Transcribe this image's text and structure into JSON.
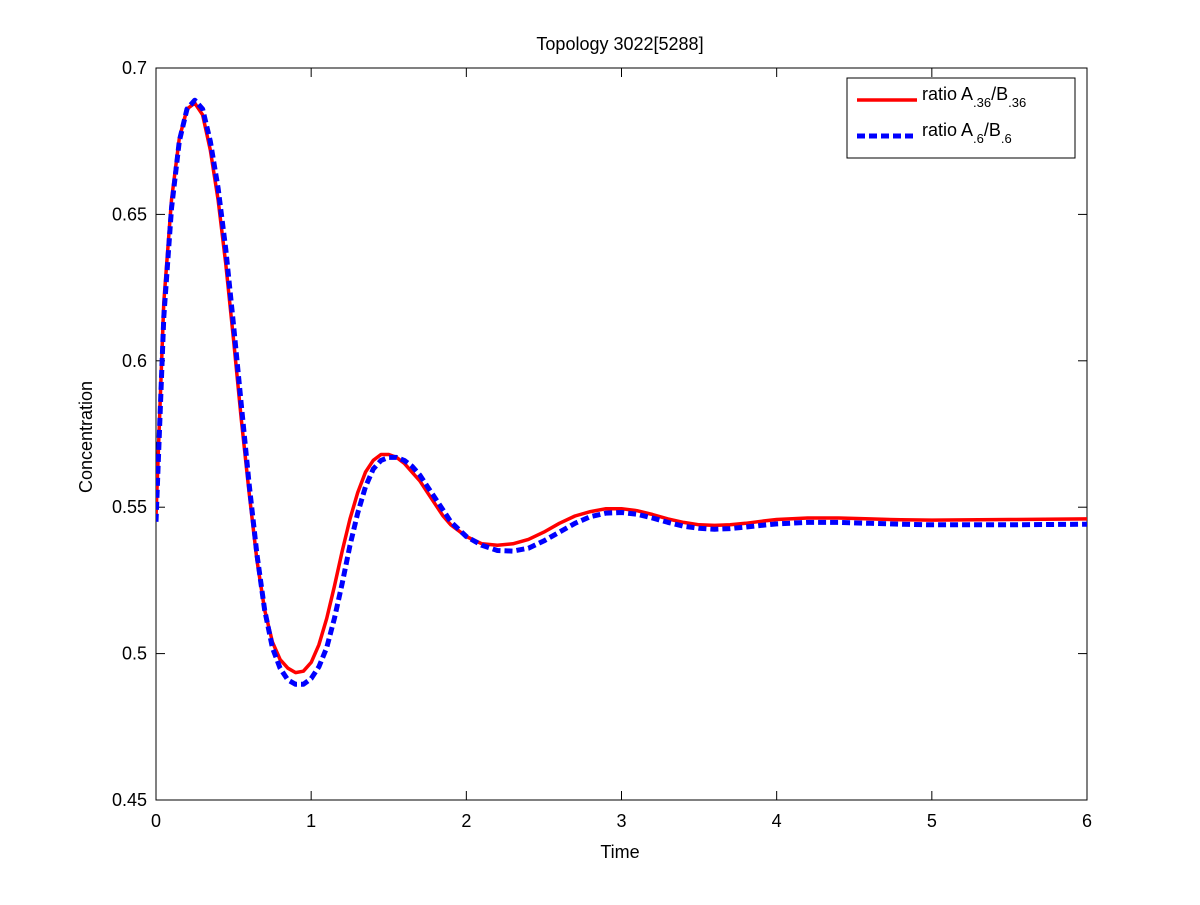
{
  "chart_data": {
    "type": "line",
    "title": "Topology 3022[5288]",
    "xlabel": "Time",
    "ylabel": "Concentration",
    "xlim": [
      0,
      6
    ],
    "ylim": [
      0.45,
      0.7
    ],
    "x_ticks": [
      "0",
      "1",
      "2",
      "3",
      "4",
      "5",
      "6"
    ],
    "y_ticks": [
      "0.45",
      "0.5",
      "0.55",
      "0.6",
      "0.65",
      "0.7"
    ],
    "grid": false,
    "legend_position": "top-right",
    "series": [
      {
        "name": {
          "base": "ratio A",
          "sub1": ".36",
          "mid": "/B",
          "sub2": ".36"
        },
        "color": "#ff0000",
        "style": "solid",
        "points": [
          [
            0,
            0.547
          ],
          [
            0.05,
            0.62
          ],
          [
            0.1,
            0.655
          ],
          [
            0.15,
            0.676
          ],
          [
            0.2,
            0.686
          ],
          [
            0.25,
            0.688
          ],
          [
            0.3,
            0.684
          ],
          [
            0.35,
            0.672
          ],
          [
            0.4,
            0.655
          ],
          [
            0.45,
            0.633
          ],
          [
            0.5,
            0.607
          ],
          [
            0.55,
            0.58
          ],
          [
            0.6,
            0.555
          ],
          [
            0.65,
            0.532
          ],
          [
            0.7,
            0.515
          ],
          [
            0.75,
            0.504
          ],
          [
            0.8,
            0.498
          ],
          [
            0.85,
            0.495
          ],
          [
            0.9,
            0.4935
          ],
          [
            0.95,
            0.494
          ],
          [
            1.0,
            0.497
          ],
          [
            1.05,
            0.503
          ],
          [
            1.1,
            0.512
          ],
          [
            1.15,
            0.523
          ],
          [
            1.2,
            0.535
          ],
          [
            1.25,
            0.546
          ],
          [
            1.3,
            0.555
          ],
          [
            1.35,
            0.562
          ],
          [
            1.4,
            0.566
          ],
          [
            1.45,
            0.568
          ],
          [
            1.5,
            0.568
          ],
          [
            1.55,
            0.567
          ],
          [
            1.6,
            0.565
          ],
          [
            1.65,
            0.562
          ],
          [
            1.7,
            0.559
          ],
          [
            1.75,
            0.555
          ],
          [
            1.8,
            0.551
          ],
          [
            1.85,
            0.547
          ],
          [
            1.9,
            0.544
          ],
          [
            2.0,
            0.54
          ],
          [
            2.1,
            0.5375
          ],
          [
            2.2,
            0.537
          ],
          [
            2.3,
            0.5375
          ],
          [
            2.4,
            0.539
          ],
          [
            2.5,
            0.5415
          ],
          [
            2.6,
            0.5445
          ],
          [
            2.7,
            0.547
          ],
          [
            2.8,
            0.5485
          ],
          [
            2.9,
            0.5495
          ],
          [
            3.0,
            0.5495
          ],
          [
            3.1,
            0.5488
          ],
          [
            3.2,
            0.5475
          ],
          [
            3.3,
            0.546
          ],
          [
            3.4,
            0.5448
          ],
          [
            3.5,
            0.544
          ],
          [
            3.6,
            0.5438
          ],
          [
            3.7,
            0.544
          ],
          [
            3.8,
            0.5445
          ],
          [
            3.9,
            0.5452
          ],
          [
            4.0,
            0.5458
          ],
          [
            4.2,
            0.5463
          ],
          [
            4.4,
            0.5463
          ],
          [
            4.6,
            0.546
          ],
          [
            4.8,
            0.5457
          ],
          [
            5.0,
            0.5456
          ],
          [
            5.5,
            0.5458
          ],
          [
            6.0,
            0.546
          ]
        ]
      },
      {
        "name": {
          "base": "ratio A",
          "sub1": ".6",
          "mid": "/B",
          "sub2": ".6"
        },
        "color": "#0000ff",
        "style": "dashed",
        "points": [
          [
            0,
            0.545
          ],
          [
            0.05,
            0.615
          ],
          [
            0.1,
            0.652
          ],
          [
            0.15,
            0.675
          ],
          [
            0.2,
            0.686
          ],
          [
            0.25,
            0.689
          ],
          [
            0.3,
            0.686
          ],
          [
            0.35,
            0.675
          ],
          [
            0.4,
            0.659
          ],
          [
            0.45,
            0.638
          ],
          [
            0.5,
            0.612
          ],
          [
            0.55,
            0.585
          ],
          [
            0.6,
            0.558
          ],
          [
            0.65,
            0.534
          ],
          [
            0.7,
            0.515
          ],
          [
            0.75,
            0.502
          ],
          [
            0.8,
            0.495
          ],
          [
            0.85,
            0.491
          ],
          [
            0.9,
            0.4895
          ],
          [
            0.95,
            0.4895
          ],
          [
            1.0,
            0.4915
          ],
          [
            1.05,
            0.4955
          ],
          [
            1.1,
            0.502
          ],
          [
            1.15,
            0.512
          ],
          [
            1.2,
            0.524
          ],
          [
            1.25,
            0.537
          ],
          [
            1.3,
            0.548
          ],
          [
            1.35,
            0.557
          ],
          [
            1.4,
            0.563
          ],
          [
            1.45,
            0.566
          ],
          [
            1.5,
            0.567
          ],
          [
            1.55,
            0.567
          ],
          [
            1.6,
            0.566
          ],
          [
            1.65,
            0.564
          ],
          [
            1.7,
            0.561
          ],
          [
            1.75,
            0.557
          ],
          [
            1.8,
            0.553
          ],
          [
            1.85,
            0.549
          ],
          [
            1.9,
            0.545
          ],
          [
            2.0,
            0.54
          ],
          [
            2.1,
            0.537
          ],
          [
            2.2,
            0.5352
          ],
          [
            2.3,
            0.535
          ],
          [
            2.4,
            0.536
          ],
          [
            2.5,
            0.5385
          ],
          [
            2.6,
            0.5415
          ],
          [
            2.7,
            0.5445
          ],
          [
            2.8,
            0.5468
          ],
          [
            2.9,
            0.548
          ],
          [
            3.0,
            0.5482
          ],
          [
            3.1,
            0.5476
          ],
          [
            3.2,
            0.5463
          ],
          [
            3.3,
            0.5448
          ],
          [
            3.4,
            0.5435
          ],
          [
            3.5,
            0.5428
          ],
          [
            3.6,
            0.5425
          ],
          [
            3.7,
            0.5427
          ],
          [
            3.8,
            0.5432
          ],
          [
            3.9,
            0.5438
          ],
          [
            4.0,
            0.5443
          ],
          [
            4.2,
            0.5448
          ],
          [
            4.4,
            0.5448
          ],
          [
            4.6,
            0.5445
          ],
          [
            4.8,
            0.5442
          ],
          [
            5.0,
            0.544
          ],
          [
            5.5,
            0.544
          ],
          [
            6.0,
            0.5442
          ]
        ]
      }
    ]
  }
}
